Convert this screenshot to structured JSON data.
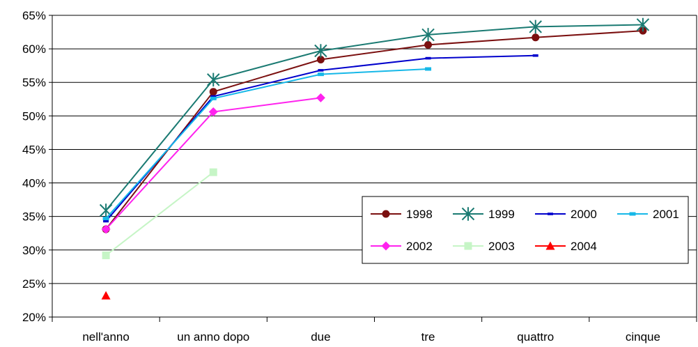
{
  "chart_data": {
    "type": "line",
    "title": "",
    "xlabel": "",
    "ylabel": "",
    "categories": [
      "nell'anno",
      "un anno dopo",
      "due",
      "tre",
      "quattro",
      "cinque"
    ],
    "ylim": [
      20,
      65
    ],
    "yticks": [
      20,
      25,
      30,
      35,
      40,
      45,
      50,
      55,
      60,
      65
    ],
    "ytick_labels": [
      "20%",
      "25%",
      "30%",
      "35%",
      "40%",
      "45%",
      "50%",
      "55%",
      "60%",
      "65%"
    ],
    "grid": "horizontal",
    "legend_position": "right",
    "series": [
      {
        "name": "1998",
        "color": "#7b1010",
        "marker": "circle",
        "values": [
          33.1,
          53.6,
          58.4,
          60.6,
          61.7,
          62.7
        ]
      },
      {
        "name": "1999",
        "color": "#1a7a72",
        "marker": "star",
        "values": [
          35.9,
          55.4,
          59.7,
          62.1,
          63.3,
          63.6
        ]
      },
      {
        "name": "2000",
        "color": "#0000cc",
        "marker": "dash",
        "values": [
          34.3,
          52.9,
          56.8,
          58.6,
          59.0,
          null
        ]
      },
      {
        "name": "2001",
        "color": "#16b8e8",
        "marker": "square-small",
        "values": [
          34.7,
          52.6,
          56.2,
          57.0,
          null,
          null
        ]
      },
      {
        "name": "2002",
        "color": "#ff22ee",
        "marker": "diamond",
        "values": [
          33.1,
          50.6,
          52.7,
          null,
          null,
          null
        ]
      },
      {
        "name": "2003",
        "color": "#c6f5c6",
        "marker": "square",
        "values": [
          29.2,
          41.6,
          null,
          null,
          null,
          null
        ]
      },
      {
        "name": "2004",
        "color": "#ff0000",
        "marker": "triangle",
        "values": [
          23.2,
          null,
          null,
          null,
          null,
          null
        ]
      }
    ]
  }
}
